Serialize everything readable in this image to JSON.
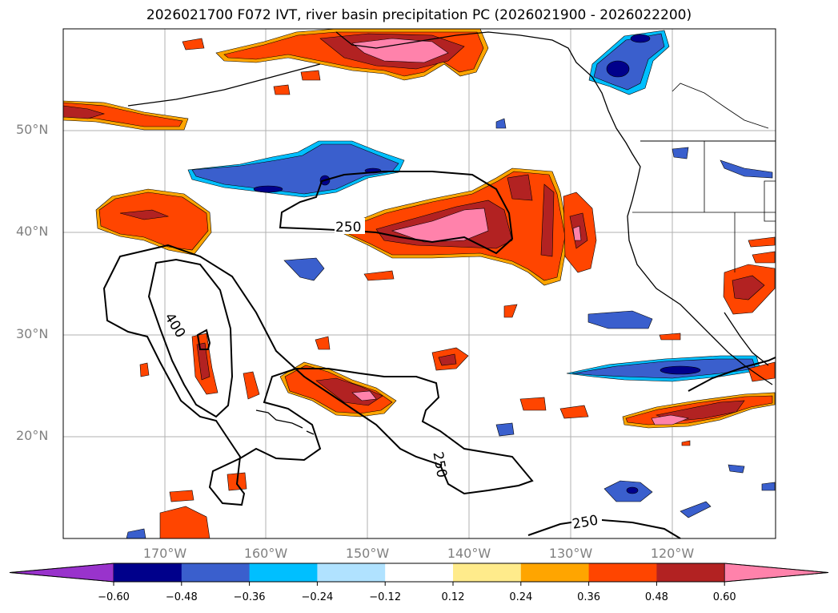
{
  "title": "2026021700 F072 IVT, river basin precipitation PC (2026021900 - 2026022200)",
  "latitude_labels": [
    "50°N",
    "40°N",
    "30°N",
    "20°N"
  ],
  "longitude_labels": [
    "170°W",
    "160°W",
    "150°W",
    "140°W",
    "130°W",
    "120°W"
  ],
  "contour_labels": [
    "250",
    "400",
    "250",
    "250"
  ],
  "colorbar": {
    "ticks": [
      "−0.60",
      "−0.48",
      "−0.36",
      "−0.24",
      "−0.12",
      "0.12",
      "0.24",
      "0.36",
      "0.48",
      "0.60"
    ],
    "colors": [
      "#9933cc",
      "#00008b",
      "#3a5fcd",
      "#00bfff",
      "#b0e2ff",
      "#ffffff",
      "#ffeb8b",
      "#ffa500",
      "#ff4500",
      "#b22222",
      "#ff82ab"
    ]
  }
}
